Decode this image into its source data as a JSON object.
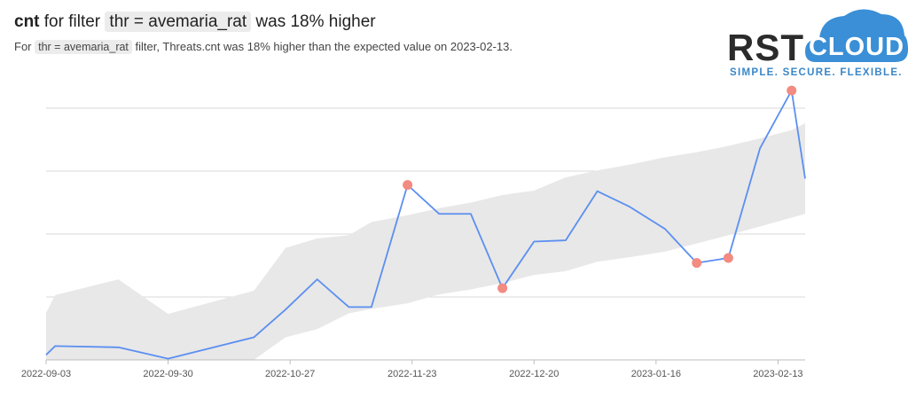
{
  "header": {
    "title_metric": "cnt",
    "title_pre": "for filter",
    "title_filter": "thr = avemaria_rat",
    "title_post": "was 18% higher",
    "subtitle_pre": "For",
    "subtitle_filter": "thr = avemaria_rat",
    "subtitle_post": "filter, Threats.cnt was 18% higher than the expected value on 2023-02-13."
  },
  "logo": {
    "word_left": "RST",
    "word_right": "CLOUD",
    "tagline": "SIMPLE.  SECURE.  FLEXIBLE.",
    "cloud_color": "#3a8fd6",
    "tagline_color": "#3a87c8"
  },
  "chart_data": {
    "type": "line",
    "x_tick_labels": [
      "2022-09-03",
      "2022-09-30",
      "2022-10-27",
      "2022-11-23",
      "2022-12-20",
      "2023-01-16",
      "2023-02-13"
    ],
    "x_range_days": [
      0,
      168
    ],
    "ylim": [
      0,
      40
    ],
    "grid": "horizontal",
    "line_color": "#5b8ff0",
    "band_color": "#e8e8e8",
    "anomaly_color": "#f28b82",
    "series": [
      {
        "x_days": [
          0,
          2,
          16,
          27,
          46,
          53,
          60,
          67,
          72,
          80,
          87,
          94,
          101,
          108,
          115,
          122,
          129,
          137,
          144,
          151,
          158,
          165,
          168
        ],
        "values": [
          0.8,
          2.2,
          2.0,
          0.2,
          3.6,
          8.0,
          12.8,
          8.4,
          8.4,
          27.8,
          23.2,
          23.2,
          11.4,
          18.8,
          19.0,
          26.8,
          24.4,
          20.8,
          15.4,
          16.2,
          33.6,
          42.8,
          28.8
        ]
      }
    ],
    "expected_band": {
      "x_days": [
        0,
        2,
        16,
        27,
        46,
        53,
        60,
        67,
        72,
        80,
        87,
        94,
        101,
        108,
        115,
        122,
        129,
        137,
        144,
        151,
        158,
        165,
        168
      ],
      "upper": [
        7.5,
        10.3,
        12.8,
        7.3,
        11.0,
        17.8,
        19.3,
        19.8,
        21.9,
        23.0,
        24.1,
        25.0,
        26.2,
        26.9,
        29.0,
        30.1,
        31.0,
        32.2,
        33.0,
        34.0,
        35.2,
        36.5,
        37.6
      ],
      "lower": [
        0,
        0,
        0,
        0,
        0,
        3.6,
        4.9,
        7.4,
        8.1,
        9.0,
        10.4,
        11.2,
        12.2,
        13.5,
        14.1,
        15.6,
        16.3,
        17.2,
        18.5,
        19.8,
        21.2,
        22.6,
        23.2
      ]
    },
    "anomalies": {
      "x_days": [
        80,
        101,
        144,
        151,
        165
      ],
      "values": [
        27.8,
        11.4,
        15.4,
        16.2,
        42.8
      ]
    }
  }
}
